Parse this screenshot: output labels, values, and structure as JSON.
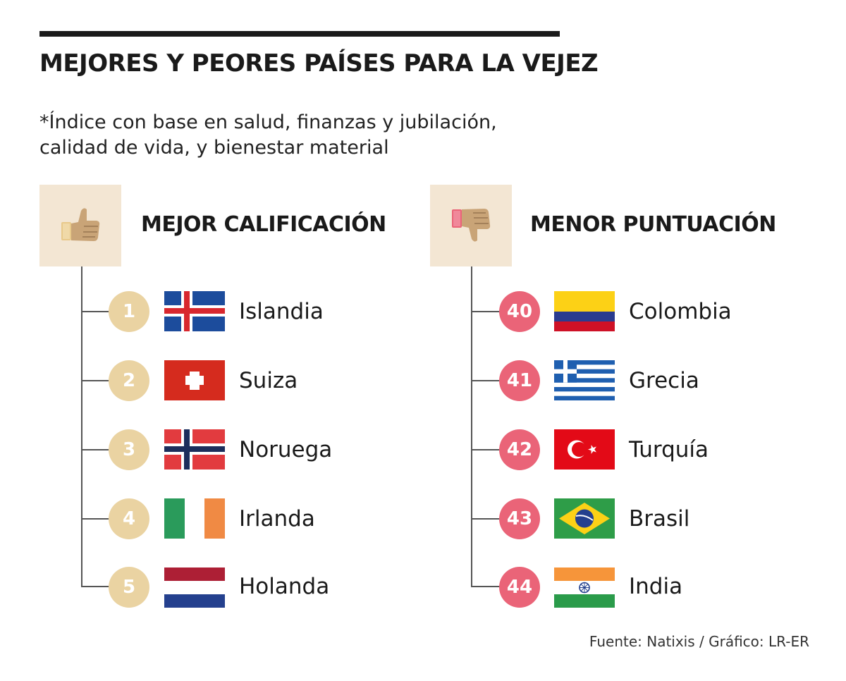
{
  "title": "MEJORES Y PEORES PAÍSES PARA LA VEJEZ",
  "subtitle_line1": "*Índice con base en salud, finanzas y jubilación,",
  "subtitle_line2": "calidad de vida, y bienestar material",
  "colors": {
    "best_badge": "#ead3a2",
    "worst_badge": "#ea6478",
    "icon_bg": "#f3e6d3"
  },
  "best": {
    "heading": "MEJOR CALIFICACIÓN",
    "icon": "thumbs-up-icon",
    "items": [
      {
        "rank": "1",
        "country": "Islandia",
        "flag": "iceland-flag-icon"
      },
      {
        "rank": "2",
        "country": "Suiza",
        "flag": "switzerland-flag-icon"
      },
      {
        "rank": "3",
        "country": "Noruega",
        "flag": "norway-flag-icon"
      },
      {
        "rank": "4",
        "country": "Irlanda",
        "flag": "ireland-flag-icon"
      },
      {
        "rank": "5",
        "country": "Holanda",
        "flag": "netherlands-flag-icon"
      }
    ]
  },
  "worst": {
    "heading": "MENOR PUNTUACIÓN",
    "icon": "thumbs-down-icon",
    "items": [
      {
        "rank": "40",
        "country": "Colombia",
        "flag": "colombia-flag-icon"
      },
      {
        "rank": "41",
        "country": "Grecia",
        "flag": "greece-flag-icon"
      },
      {
        "rank": "42",
        "country": "Turquía",
        "flag": "turkey-flag-icon"
      },
      {
        "rank": "43",
        "country": "Brasil",
        "flag": "brazil-flag-icon"
      },
      {
        "rank": "44",
        "country": "India",
        "flag": "india-flag-icon"
      }
    ]
  },
  "source": "Fuente: Natixis / Gráfico: LR-ER"
}
